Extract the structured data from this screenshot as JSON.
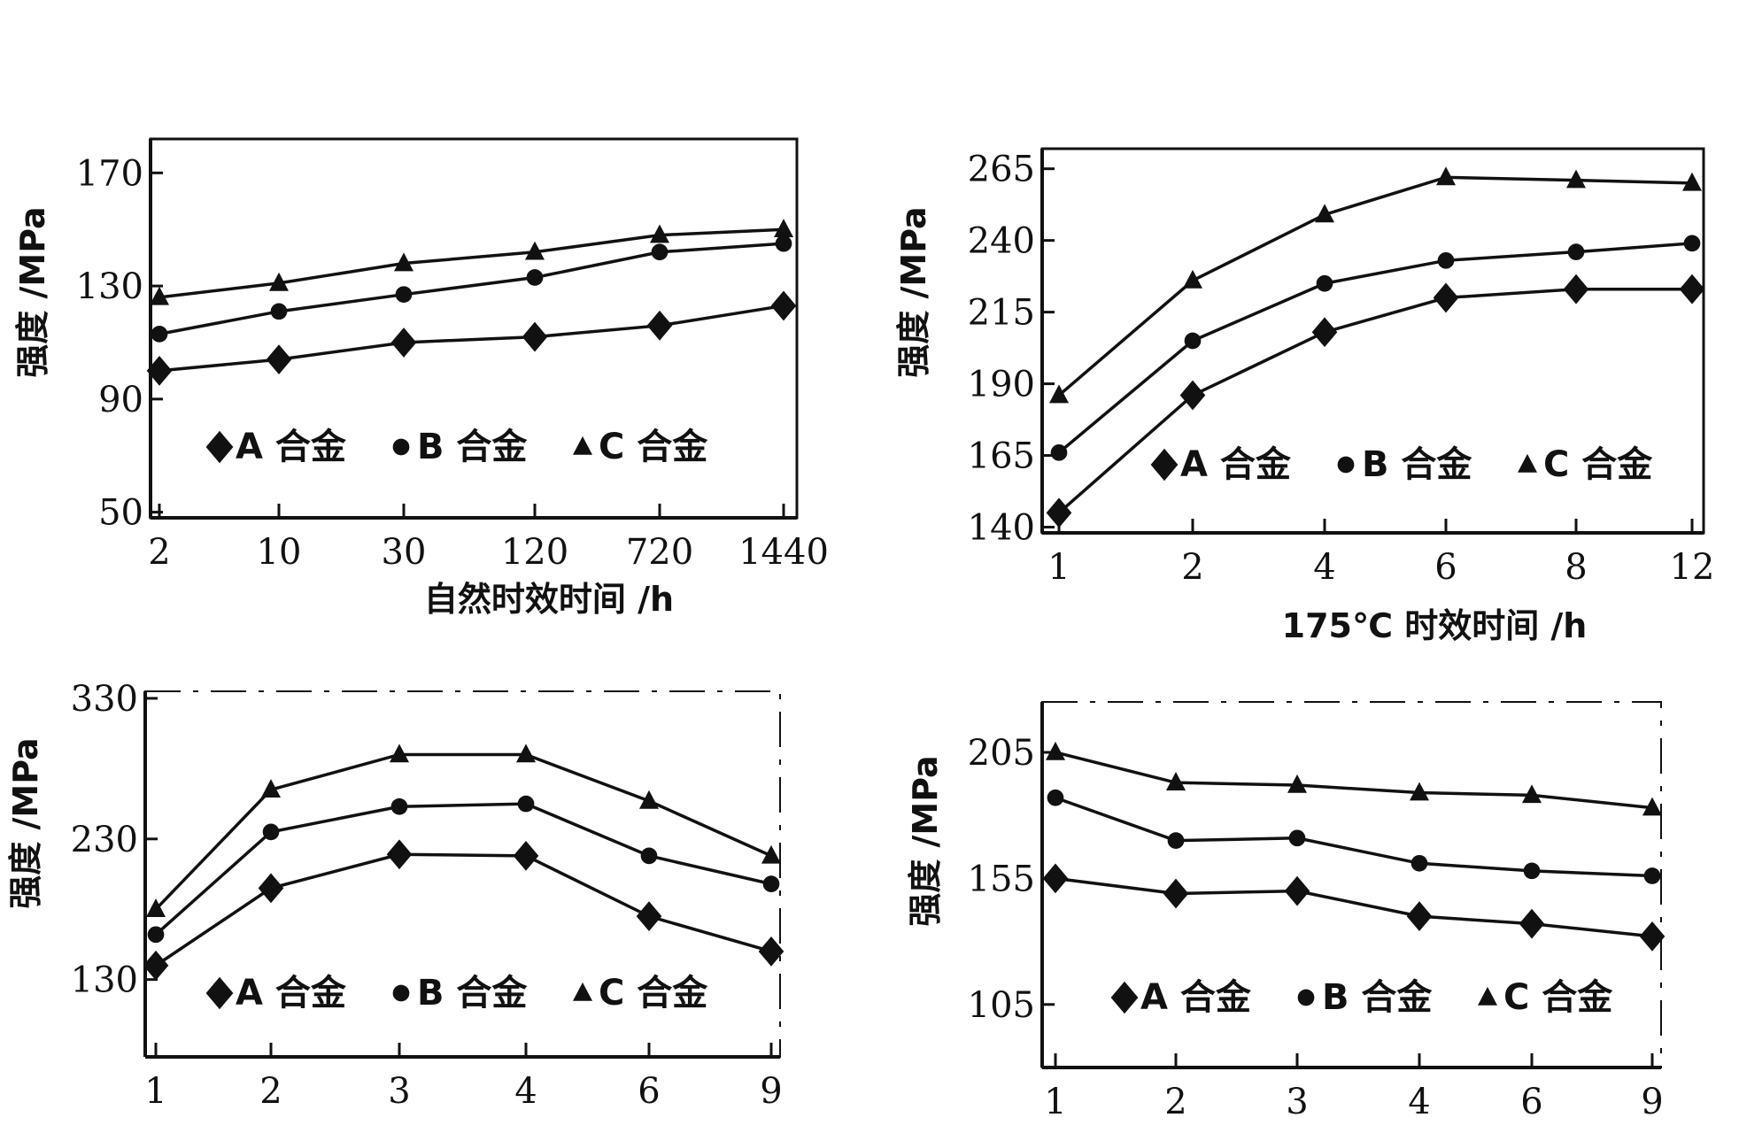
{
  "chart_data": [
    {
      "type": "line",
      "xlabel": "自然时效时间 /h",
      "ylabel": "强度 /MPa",
      "categories": [
        "2",
        "10",
        "30",
        "120",
        "720",
        "1440"
      ],
      "yticks": [
        50,
        90,
        130,
        170
      ],
      "ylim": [
        48,
        182
      ],
      "grid": false,
      "legend_position": "bottom-center",
      "series": [
        {
          "name": "A 合金",
          "marker": "diamond",
          "values": [
            100,
            104,
            110,
            112,
            116,
            123
          ]
        },
        {
          "name": "B 合金",
          "marker": "circle",
          "values": [
            113,
            121,
            127,
            133,
            142,
            145
          ]
        },
        {
          "name": "C 合金",
          "marker": "triangle",
          "values": [
            126,
            131,
            138,
            142,
            148,
            150
          ]
        }
      ]
    },
    {
      "type": "line",
      "xlabel": "175℃ 时效时间 /h",
      "ylabel": "强度 /MPa",
      "categories": [
        "1",
        "2",
        "4",
        "6",
        "8",
        "12"
      ],
      "yticks": [
        140,
        165,
        190,
        215,
        240,
        265
      ],
      "ylim": [
        138,
        272
      ],
      "grid": false,
      "legend_position": "bottom-right",
      "series": [
        {
          "name": "A 合金",
          "marker": "diamond",
          "values": [
            145,
            186,
            208,
            220,
            223,
            223
          ]
        },
        {
          "name": "B 合金",
          "marker": "circle",
          "values": [
            166,
            205,
            225,
            233,
            236,
            239
          ]
        },
        {
          "name": "C 合金",
          "marker": "triangle",
          "values": [
            186,
            226,
            249,
            262,
            261,
            260
          ]
        }
      ]
    },
    {
      "type": "line",
      "xlabel": "",
      "ylabel": "强度 /MPa",
      "categories": [
        "1",
        "2",
        "3",
        "4",
        "6",
        "9"
      ],
      "yticks": [
        130,
        230,
        330
      ],
      "ylim": [
        75,
        335
      ],
      "grid": false,
      "legend_position": "bottom-center",
      "series": [
        {
          "name": "A 合金",
          "marker": "diamond",
          "values": [
            140,
            195,
            219,
            218,
            175,
            150
          ]
        },
        {
          "name": "B 合金",
          "marker": "circle",
          "values": [
            162,
            235,
            253,
            255,
            218,
            198
          ]
        },
        {
          "name": "C 合金",
          "marker": "triangle",
          "values": [
            180,
            265,
            290,
            290,
            257,
            218
          ]
        }
      ]
    },
    {
      "type": "line",
      "xlabel": "",
      "ylabel": "强度 /MPa",
      "categories": [
        "1",
        "2",
        "3",
        "4",
        "6",
        "9"
      ],
      "yticks": [
        105,
        155,
        205
      ],
      "ylim": [
        80,
        225
      ],
      "grid": false,
      "legend_position": "bottom-center",
      "series": [
        {
          "name": "A 合金",
          "marker": "diamond",
          "values": [
            155,
            149,
            150,
            140,
            137,
            132
          ]
        },
        {
          "name": "B 合金",
          "marker": "circle",
          "values": [
            187,
            170,
            171,
            161,
            158,
            156
          ]
        },
        {
          "name": "C 合金",
          "marker": "triangle",
          "values": [
            205,
            193,
            192,
            189,
            188,
            183
          ]
        }
      ]
    }
  ]
}
